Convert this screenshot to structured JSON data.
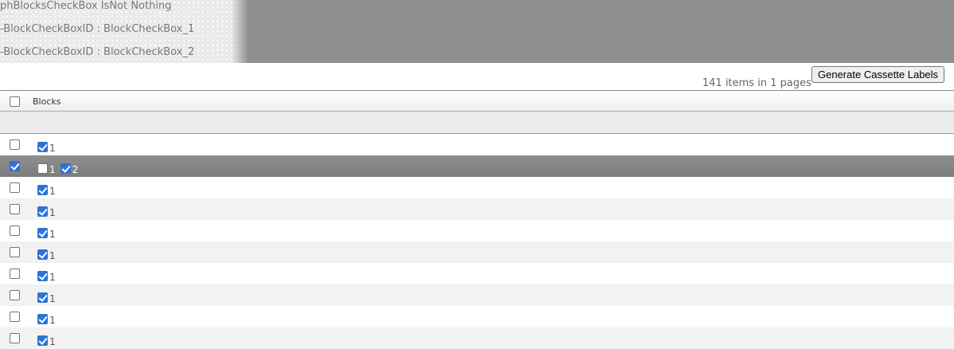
{
  "debug": [
    "phBlocksCheckBox IsNot Nothing",
    "-BlockCheckBoxID : BlockCheckBox_1",
    "-BlockCheckBoxID : BlockCheckBox_2"
  ],
  "pager": {
    "count_text": "141 items in 1 pages"
  },
  "toolbar": {
    "generate_label": "Generate Cassette Labels"
  },
  "grid": {
    "header": {
      "select_all": false,
      "blocks_label": "Blocks"
    },
    "rows": [
      {
        "selected": false,
        "blocks": [
          {
            "label": "1",
            "checked": true
          }
        ]
      },
      {
        "selected": true,
        "blocks": [
          {
            "label": "1",
            "checked": false
          },
          {
            "label": "2",
            "checked": true
          }
        ]
      },
      {
        "selected": false,
        "blocks": [
          {
            "label": "1",
            "checked": true
          }
        ]
      },
      {
        "selected": false,
        "blocks": [
          {
            "label": "1",
            "checked": true
          }
        ]
      },
      {
        "selected": false,
        "blocks": [
          {
            "label": "1",
            "checked": true
          }
        ]
      },
      {
        "selected": false,
        "blocks": [
          {
            "label": "1",
            "checked": true
          }
        ]
      },
      {
        "selected": false,
        "blocks": [
          {
            "label": "1",
            "checked": true
          }
        ]
      },
      {
        "selected": false,
        "blocks": [
          {
            "label": "1",
            "checked": true
          }
        ]
      },
      {
        "selected": false,
        "blocks": [
          {
            "label": "1",
            "checked": true
          }
        ]
      },
      {
        "selected": false,
        "blocks": [
          {
            "label": "1",
            "checked": true
          }
        ]
      }
    ]
  },
  "colors": {
    "accent": "#2b74d8",
    "selected_row": "#868686",
    "alt_row": "#f2f2f2"
  }
}
